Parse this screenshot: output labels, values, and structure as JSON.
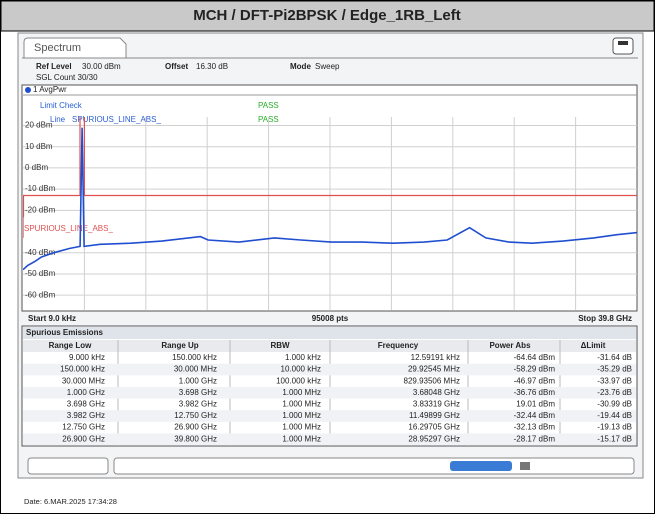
{
  "title": "MCH / DFT-Pi2BPSK / Edge_1RB_Left",
  "tab": "Spectrum",
  "header": {
    "ref_level_label": "Ref Level",
    "ref_level": "30.00 dBm",
    "offset_label": "Offset",
    "offset": "16.30 dB",
    "mode_label": "Mode",
    "mode": "Sweep",
    "count": "SGL Count 30/30"
  },
  "chart_data": {
    "type": "line",
    "legend": "1 AvgPwr",
    "limit_check": "Limit Check",
    "limit_check_result": "PASS",
    "line_label": "Line",
    "line_result": "PASS",
    "xlim": [
      9e-06,
      39.8
    ],
    "ylim": [
      -67,
      24
    ],
    "yticks": [
      {
        "value": 20,
        "label": "20 dBm"
      },
      {
        "value": 10,
        "label": "10 dBm"
      },
      {
        "value": 0,
        "label": "0 dBm"
      },
      {
        "value": -10,
        "label": "-10 dBm"
      },
      {
        "value": -20,
        "label": "-20 dBm"
      },
      {
        "value": -40,
        "label": "-40 dBm"
      },
      {
        "value": -50,
        "label": "-50 dBm"
      },
      {
        "value": -60,
        "label": "-60 dBm"
      }
    ],
    "color": "#1f4fd0",
    "x": [
      9e-06,
      0.3,
      0.8,
      1.2,
      2.0,
      3.0,
      3.7,
      3.83,
      3.96,
      5,
      7,
      9,
      11.5,
      12,
      14,
      16.3,
      18,
      20,
      22,
      24,
      26,
      27.5,
      28.95,
      30,
      31.5,
      33,
      35,
      37,
      38.5,
      39.8
    ],
    "values": [
      -48,
      -46,
      -44,
      -42,
      -40,
      -38,
      -37,
      19,
      -37,
      -36,
      -35.5,
      -34.5,
      -32.4,
      -34,
      -35,
      -33,
      -34,
      -35,
      -35,
      -35.5,
      -35,
      -34,
      -28.2,
      -33,
      -35,
      -35.5,
      -34.5,
      -33,
      -31.5,
      -30.5
    ],
    "limit": {
      "name": "SPURIOUS_LINE_ABS_",
      "color": "#e05050",
      "x": [
        9e-06,
        0.00015,
        0.00015,
        0.03,
        0.03,
        3.698,
        3.698,
        3.982,
        3.982,
        39.8
      ],
      "values": [
        -33,
        -33,
        -23,
        -23,
        -13,
        -13,
        50,
        50,
        -13,
        -13
      ]
    },
    "start": "Start 9.0 kHz",
    "points": "95008 pts",
    "stop": "Stop 39.8 GHz"
  },
  "table": {
    "title": "Spurious Emissions",
    "columns": [
      "Range Low",
      "Range Up",
      "RBW",
      "Frequency",
      "Power Abs",
      "ΔLimit"
    ],
    "rows": [
      [
        "9.000 kHz",
        "150.000 kHz",
        "1.000 kHz",
        "12.59191 kHz",
        "-64.64 dBm",
        "-31.64 dB"
      ],
      [
        "150.000 kHz",
        "30.000 MHz",
        "10.000 kHz",
        "29.92545 MHz",
        "-58.29 dBm",
        "-35.29 dB"
      ],
      [
        "30.000 MHz",
        "1.000 GHz",
        "100.000 kHz",
        "829.93506 MHz",
        "-46.97 dBm",
        "-33.97 dB"
      ],
      [
        "1.000 GHz",
        "3.698 GHz",
        "1.000 MHz",
        "3.68048 GHz",
        "-36.76 dBm",
        "-23.76 dB"
      ],
      [
        "3.698 GHz",
        "3.982 GHz",
        "1.000 MHz",
        "3.83319 GHz",
        "19.01 dBm",
        "-30.99 dB"
      ],
      [
        "3.982 GHz",
        "12.750 GHz",
        "1.000 MHz",
        "11.49899 GHz",
        "-32.44 dBm",
        "-19.44 dB"
      ],
      [
        "12.750 GHz",
        "26.900 GHz",
        "1.000 MHz",
        "16.29705 GHz",
        "-32.13 dBm",
        "-19.13 dB"
      ],
      [
        "26.900 GHz",
        "39.800 GHz",
        "1.000 MHz",
        "28.95297 GHz",
        "-28.17 dBm",
        "-15.17 dB"
      ]
    ]
  },
  "footer": {
    "date": "Date: 6.MAR.2025  17:34:28"
  }
}
